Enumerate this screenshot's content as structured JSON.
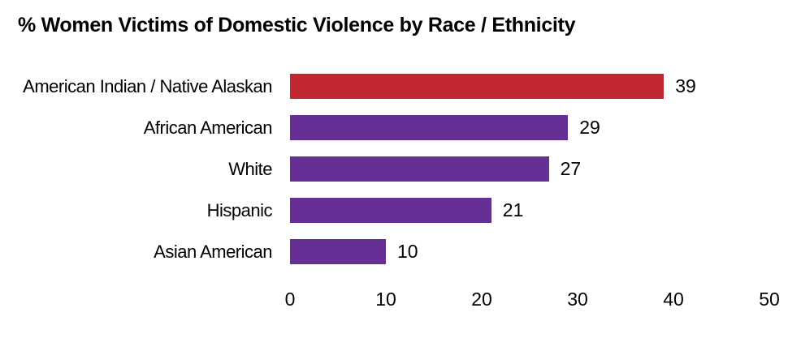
{
  "chart_data": {
    "type": "bar",
    "orientation": "horizontal",
    "title": "% Women Victims of Domestic Violence by Race / Ethnicity",
    "categories": [
      "American Indian / Native Alaskan",
      "African American",
      "White",
      "Hispanic",
      "Asian American"
    ],
    "values": [
      39,
      29,
      27,
      21,
      10
    ],
    "value_labels": [
      "39",
      "29",
      "27",
      "21",
      "10"
    ],
    "bar_colors": [
      "#C2282F",
      "#662F96",
      "#662F96",
      "#662F96",
      "#662F96"
    ],
    "highlight_color": "#C2282F",
    "default_color": "#662F96",
    "x_ticks": [
      0,
      10,
      20,
      30,
      40,
      50
    ],
    "xlim": [
      0,
      50
    ],
    "xlabel": "",
    "ylabel": "",
    "grid": false,
    "legend": null,
    "axis_lines": false,
    "text_color": "#000000",
    "background_color": "#FFFFFF"
  }
}
